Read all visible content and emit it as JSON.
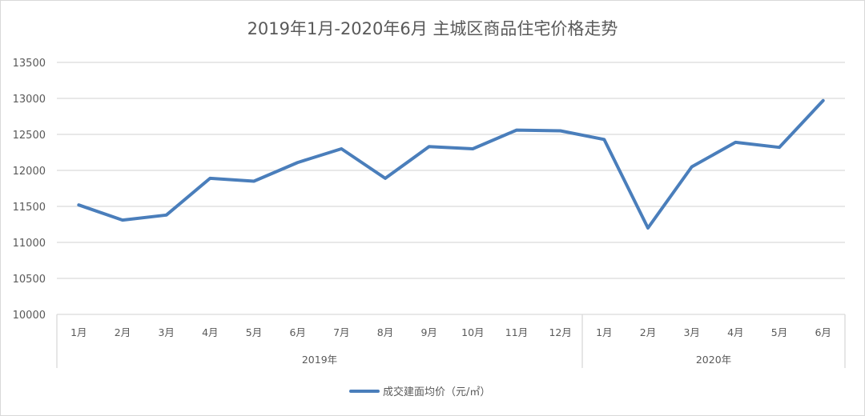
{
  "title": "2019年1月-2020年6月 主城区商品住宅价格走势",
  "legend": {
    "label": "成交建面均价（元/㎡）",
    "color": "#4a7ebb"
  },
  "chart_data": {
    "type": "line",
    "title": "2019年1月-2020年6月 主城区商品住宅价格走势",
    "xlabel": "",
    "ylabel": "",
    "ylim": [
      10000,
      13500
    ],
    "yticks": [
      10000,
      10500,
      11000,
      11500,
      12000,
      12500,
      13000,
      13500
    ],
    "grid": true,
    "legend_position": "bottom",
    "category_groups": [
      {
        "label": "2019年",
        "categories": [
          "1月",
          "2月",
          "3月",
          "4月",
          "5月",
          "6月",
          "7月",
          "8月",
          "9月",
          "10月",
          "11月",
          "12月"
        ]
      },
      {
        "label": "2020年",
        "categories": [
          "1月",
          "2月",
          "3月",
          "4月",
          "5月",
          "6月"
        ]
      }
    ],
    "categories": [
      "1月",
      "2月",
      "3月",
      "4月",
      "5月",
      "6月",
      "7月",
      "8月",
      "9月",
      "10月",
      "11月",
      "12月",
      "1月",
      "2月",
      "3月",
      "4月",
      "5月",
      "6月"
    ],
    "series": [
      {
        "name": "成交建面均价（元/㎡）",
        "color": "#4a7ebb",
        "values": [
          11520,
          11310,
          11380,
          11890,
          11850,
          12110,
          12300,
          11890,
          12330,
          12300,
          12560,
          12550,
          12430,
          11200,
          12050,
          12390,
          12320,
          12970
        ]
      }
    ]
  }
}
